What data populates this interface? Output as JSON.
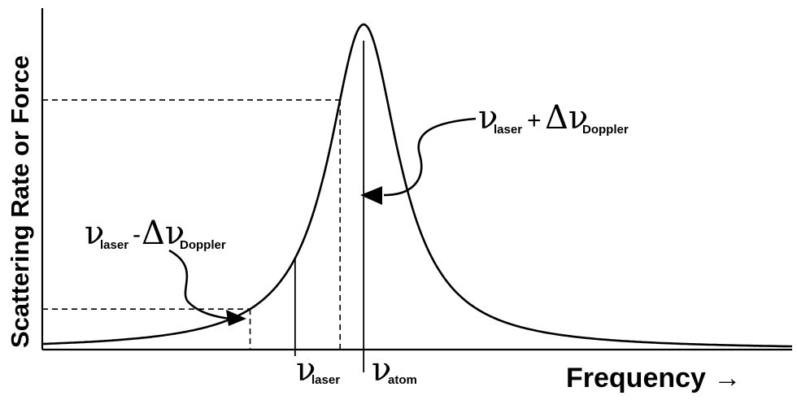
{
  "chart_data": {
    "type": "line",
    "title": "",
    "ylabel": "Scattering Rate or Force",
    "xlabel": "Frequency →",
    "grid": false,
    "ticks_shown": false,
    "series": [
      {
        "shape": "lorentzian",
        "center": 0,
        "half_width": 1,
        "peak": 1
      }
    ],
    "xlim": [
      -7.5,
      10
    ],
    "ylim": [
      0,
      1.05
    ],
    "markers": {
      "nu_atom": {
        "x": 0,
        "style": "solid",
        "sym": "ν",
        "sub": "atom"
      },
      "nu_laser": {
        "x": -1.6,
        "style": "solid",
        "sym": "ν",
        "sub": "laser"
      },
      "minus": {
        "x": -2.65,
        "style": "dashed",
        "sym": "ν",
        "sub": "laser",
        "op": "-",
        "sym2": "Δν",
        "sub2": "Doppler"
      },
      "plus": {
        "x": -0.55,
        "style": "dashed",
        "sym": "ν",
        "sub": "laser",
        "op": "+",
        "sym2": "Δν",
        "sub2": "Doppler"
      }
    }
  }
}
